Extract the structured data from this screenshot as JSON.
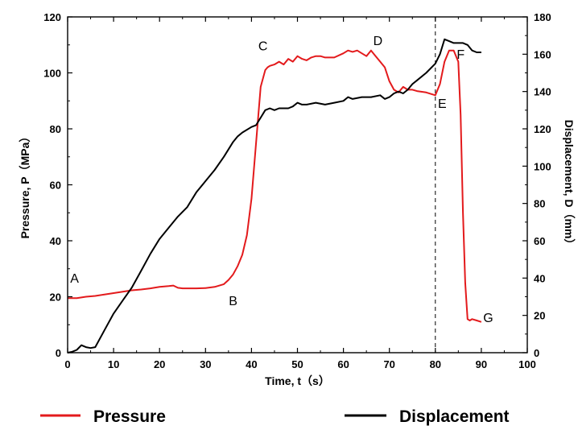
{
  "chart_data": {
    "type": "line",
    "xlabel": "Time, t（s）",
    "ylabel_left": "Pressure, P（MPa）",
    "ylabel_right": "Displacement, D（mm）",
    "xlim": [
      0,
      100
    ],
    "ylim_left": [
      0,
      120
    ],
    "ylim_right": [
      0,
      180
    ],
    "x_ticks": [
      0,
      10,
      20,
      30,
      40,
      50,
      60,
      70,
      80,
      90,
      100
    ],
    "y_left_ticks": [
      0,
      20,
      40,
      60,
      80,
      100,
      120
    ],
    "y_right_ticks": [
      0,
      20,
      40,
      60,
      80,
      100,
      120,
      140,
      160,
      180
    ],
    "grid": false,
    "legend_position": "bottom",
    "reference_line": {
      "x": 80,
      "style": "dashed"
    },
    "series": [
      {
        "name": "Pressure",
        "axis": "left",
        "color": "#e31a1c",
        "x": [
          0,
          2,
          4,
          6,
          8,
          10,
          12,
          14,
          16,
          18,
          20,
          22,
          23,
          24,
          25,
          26,
          28,
          30,
          32,
          34,
          35,
          36,
          37,
          38,
          39,
          40,
          41,
          42,
          43,
          43.5,
          44,
          45,
          46,
          47,
          48,
          49,
          50,
          51,
          52,
          53,
          54,
          55,
          56,
          58,
          60,
          61,
          62,
          63,
          64,
          65,
          66,
          67,
          68,
          69,
          70,
          71,
          72,
          73,
          74,
          75,
          76,
          78,
          79,
          80,
          81,
          82,
          83,
          84,
          85,
          85.5,
          86,
          86.5,
          87,
          87.5,
          88,
          89,
          90
        ],
        "y": [
          19.5,
          19.5,
          20,
          20.3,
          20.8,
          21.3,
          21.8,
          22.3,
          22.6,
          23.0,
          23.5,
          23.8,
          24,
          23.2,
          23.0,
          23.0,
          23.0,
          23.1,
          23.5,
          24.5,
          26,
          28,
          31,
          35,
          42,
          55,
          75,
          95,
          101,
          102,
          102.5,
          103,
          104,
          103,
          105,
          104,
          106,
          105,
          104.5,
          105.5,
          106,
          106,
          105.5,
          105.5,
          107,
          108,
          107.5,
          108,
          107,
          106,
          108,
          106,
          104,
          102,
          97,
          94,
          93,
          95,
          94,
          94,
          93.5,
          93,
          92.5,
          92,
          96,
          104,
          108,
          108,
          104,
          85,
          50,
          25,
          12,
          11.5,
          12,
          11.5,
          11
        ]
      },
      {
        "name": "Displacement",
        "axis": "right",
        "color": "#000000",
        "x": [
          0,
          1,
          2,
          3,
          4,
          5,
          6,
          8,
          10,
          12,
          14,
          16,
          18,
          20,
          22,
          24,
          26,
          28,
          30,
          32,
          34,
          36,
          37,
          38,
          40,
          41,
          42,
          43,
          44,
          45,
          46,
          47,
          48,
          49,
          50,
          51,
          52,
          54,
          56,
          58,
          60,
          61,
          62,
          64,
          66,
          68,
          69,
          70,
          71,
          72,
          73,
          74,
          75,
          76,
          78,
          80,
          81,
          82,
          83,
          84,
          85,
          86,
          87,
          88,
          89,
          90
        ],
        "y": [
          0,
          0.5,
          1.5,
          4,
          3,
          2.5,
          3,
          12,
          21,
          28,
          35,
          44,
          53,
          61,
          67,
          73,
          78,
          86,
          92,
          98,
          105,
          113,
          116,
          118,
          121,
          122,
          126,
          130,
          131,
          130,
          131,
          131,
          131,
          132,
          134,
          133,
          133,
          134,
          133,
          134,
          135,
          137,
          136,
          137,
          137,
          138,
          136,
          137,
          139,
          140,
          139,
          141,
          144,
          146,
          150,
          155,
          160,
          168,
          167,
          166,
          166,
          166,
          165,
          162,
          161,
          161
        ]
      }
    ],
    "annotations": [
      {
        "text": "A",
        "x": 1.5,
        "y": 25,
        "axis": "left"
      },
      {
        "text": "B",
        "x": 36,
        "y": 17,
        "axis": "left"
      },
      {
        "text": "C",
        "x": 42.5,
        "y": 108,
        "axis": "left"
      },
      {
        "text": "D",
        "x": 67.5,
        "y": 110,
        "axis": "left"
      },
      {
        "text": "E",
        "x": 81.5,
        "y": 87.5,
        "axis": "left"
      },
      {
        "text": "F",
        "x": 85.5,
        "y": 105,
        "axis": "left"
      },
      {
        "text": "G",
        "x": 91.5,
        "y": 11,
        "axis": "left"
      }
    ]
  }
}
